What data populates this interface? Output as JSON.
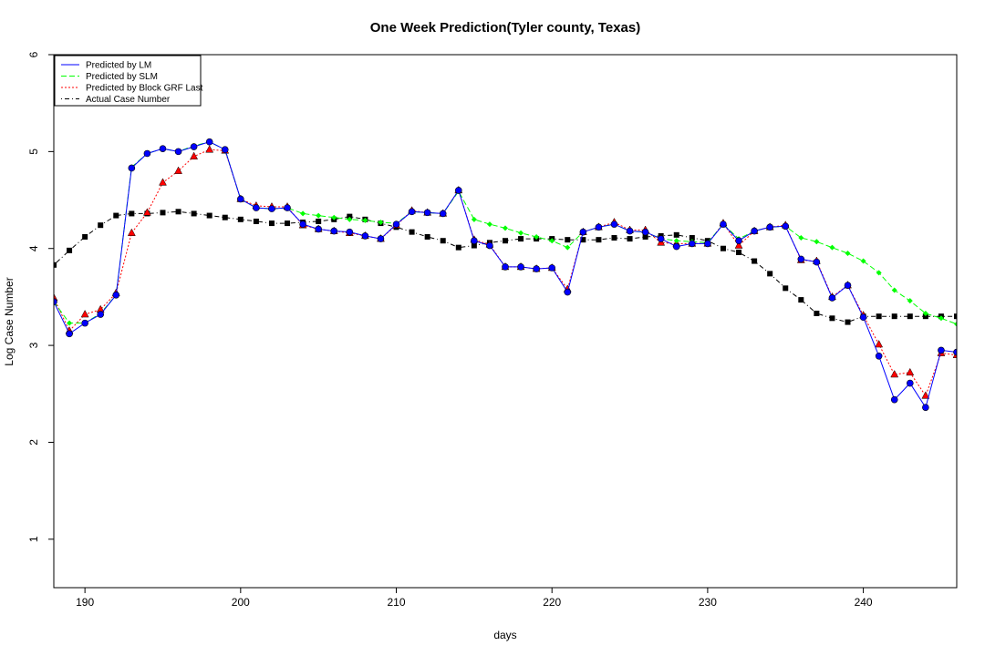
{
  "chart_data": {
    "type": "line",
    "title": "One Week Prediction(Tyler county, Texas)",
    "xlabel": "days",
    "ylabel": "Log Case Number",
    "xlim": [
      188,
      246
    ],
    "ylim": [
      0.5,
      6
    ],
    "xticks": [
      190,
      200,
      210,
      220,
      230,
      240
    ],
    "yticks": [
      1,
      2,
      3,
      4,
      5,
      6
    ],
    "grid": false,
    "legend_position": "top-left",
    "x": [
      188,
      189,
      190,
      191,
      192,
      193,
      194,
      195,
      196,
      197,
      198,
      199,
      200,
      201,
      202,
      203,
      204,
      205,
      206,
      207,
      208,
      209,
      210,
      211,
      212,
      213,
      214,
      215,
      216,
      217,
      218,
      219,
      220,
      221,
      222,
      223,
      224,
      225,
      226,
      227,
      228,
      229,
      230,
      231,
      232,
      233,
      234,
      235,
      236,
      237,
      238,
      239,
      240,
      241,
      242,
      243,
      244,
      245,
      246
    ],
    "series": [
      {
        "name": "Predicted by LM",
        "color": "#0000ff",
        "line": "solid",
        "marker": "circle",
        "values": [
          3.45,
          3.12,
          3.23,
          3.32,
          3.52,
          4.83,
          4.98,
          5.03,
          5.0,
          5.05,
          5.1,
          5.02,
          4.51,
          4.42,
          4.41,
          4.42,
          4.25,
          4.2,
          4.18,
          4.17,
          4.13,
          4.1,
          4.25,
          4.38,
          4.37,
          4.36,
          4.6,
          4.08,
          4.03,
          3.81,
          3.81,
          3.79,
          3.8,
          3.55,
          4.17,
          4.22,
          4.25,
          4.18,
          4.17,
          4.1,
          4.02,
          4.05,
          4.05,
          4.25,
          4.08,
          4.18,
          4.22,
          4.23,
          3.89,
          3.86,
          3.49,
          3.62,
          3.29,
          2.89,
          2.44,
          2.61,
          2.36,
          2.95,
          2.93
        ]
      },
      {
        "name": "Predicted by SLM",
        "color": "#00ff00",
        "line": "dashed",
        "marker": "diamond",
        "values": [
          3.45,
          3.23,
          3.23,
          3.33,
          3.52,
          4.84,
          4.98,
          5.03,
          5.0,
          5.06,
          5.1,
          5.02,
          4.51,
          4.42,
          4.41,
          4.42,
          4.36,
          4.34,
          4.32,
          4.3,
          4.29,
          4.27,
          4.26,
          4.38,
          4.37,
          4.36,
          4.59,
          4.3,
          4.25,
          4.21,
          4.16,
          4.12,
          4.08,
          4.01,
          4.17,
          4.22,
          4.25,
          4.18,
          4.17,
          4.1,
          4.08,
          4.07,
          4.06,
          4.25,
          4.1,
          4.18,
          4.22,
          4.23,
          4.11,
          4.07,
          4.01,
          3.95,
          3.87,
          3.75,
          3.57,
          3.46,
          3.33,
          3.28,
          3.22
        ]
      },
      {
        "name": "Predicted by Block GRF Last",
        "color": "#ff0000",
        "line": "dotted",
        "marker": "triangle",
        "values": [
          3.49,
          3.15,
          3.32,
          3.37,
          3.54,
          4.16,
          4.37,
          4.68,
          4.8,
          4.95,
          5.02,
          5.01,
          4.51,
          4.44,
          4.43,
          4.43,
          4.24,
          4.2,
          4.18,
          4.16,
          4.13,
          4.1,
          4.24,
          4.39,
          4.37,
          4.36,
          4.6,
          4.09,
          4.04,
          3.81,
          3.81,
          3.79,
          3.8,
          3.58,
          4.17,
          4.22,
          4.27,
          4.19,
          4.19,
          4.06,
          4.05,
          4.05,
          4.05,
          4.26,
          4.03,
          4.18,
          4.22,
          4.24,
          3.88,
          3.87,
          3.5,
          3.62,
          3.31,
          3.01,
          2.7,
          2.72,
          2.48,
          2.92,
          2.9
        ]
      },
      {
        "name": "Actual Case Number",
        "color": "#000000",
        "line": "dashdot",
        "marker": "square",
        "values": [
          3.83,
          3.98,
          4.12,
          4.24,
          4.34,
          4.36,
          4.36,
          4.37,
          4.38,
          4.36,
          4.34,
          4.32,
          4.3,
          4.28,
          4.26,
          4.26,
          4.27,
          4.28,
          4.3,
          4.33,
          4.3,
          4.26,
          4.22,
          4.17,
          4.12,
          4.08,
          4.01,
          4.03,
          4.06,
          4.08,
          4.1,
          4.1,
          4.1,
          4.09,
          4.09,
          4.09,
          4.11,
          4.1,
          4.12,
          4.13,
          4.14,
          4.11,
          4.08,
          4.0,
          3.96,
          3.87,
          3.74,
          3.59,
          3.47,
          3.33,
          3.28,
          3.24,
          3.3,
          3.3,
          3.3,
          3.3,
          3.3,
          3.3,
          3.3
        ]
      }
    ]
  }
}
